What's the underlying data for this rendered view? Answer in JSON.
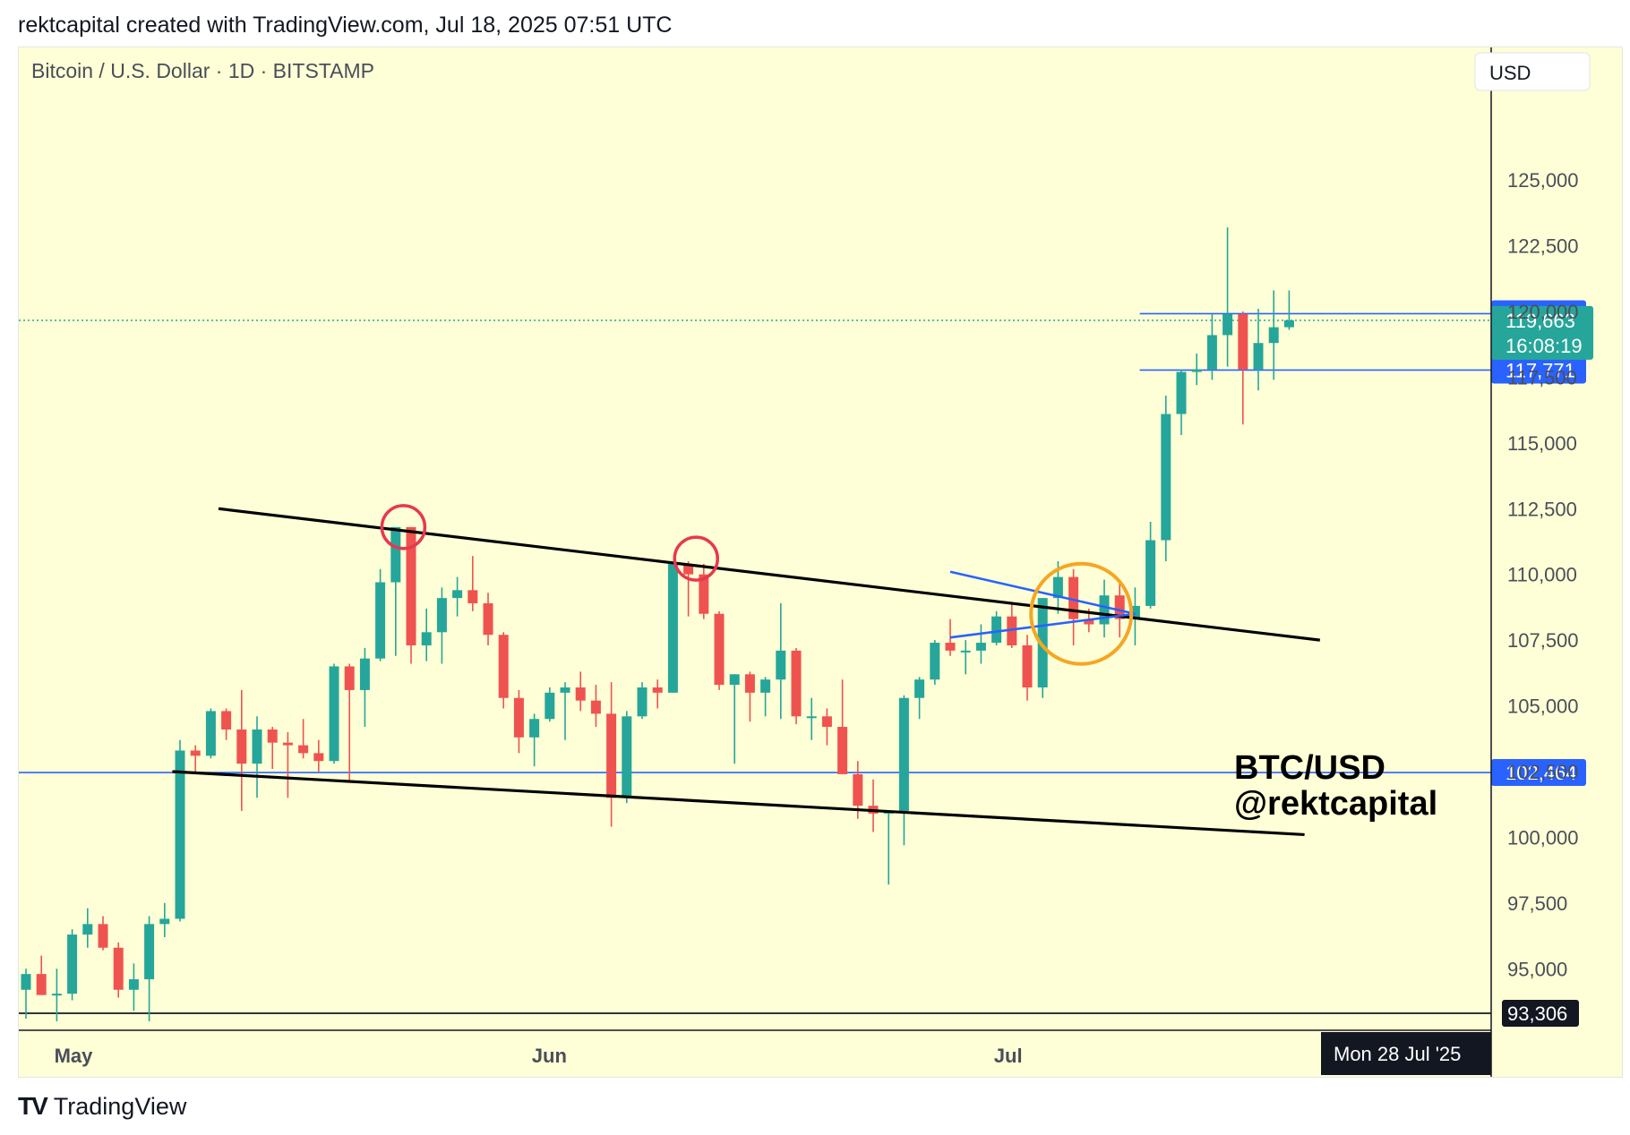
{
  "header": {
    "text": "rektcapital created with TradingView.com, Jul 18, 2025 07:51 UTC"
  },
  "footer": {
    "logo": "TV",
    "brand": "TradingView"
  },
  "chart_data": {
    "type": "candlestick",
    "title": "Bitcoin / U.S. Dollar · 1D · BITSTAMP",
    "currency_button": "USD",
    "watermark": [
      "BTC/USD",
      "@rektcapital"
    ],
    "ylim": [
      93000,
      128000
    ],
    "y_ticks": [
      95000,
      97500,
      100000,
      102500,
      105000,
      107500,
      110000,
      112500,
      115000,
      117500,
      120000,
      122500,
      125000
    ],
    "y_tick_labels": [
      "95,000",
      "97,500",
      "100,000",
      "102,500",
      "105,000",
      "107,500",
      "110,000",
      "112,500",
      "115,000",
      "117,500",
      "120,000",
      "122,500",
      "125,000"
    ],
    "x_labels": [
      {
        "label": "May",
        "index": 3
      },
      {
        "label": "Jun",
        "index": 34
      },
      {
        "label": "Jul",
        "index": 64
      }
    ],
    "cursor_label": "Mon 28 Jul '25",
    "colors": {
      "up": "#26a69a",
      "down": "#ef5350",
      "bg": "#feffd6",
      "hline": "#2962ff",
      "trend": "#000000",
      "triangle": "#2962ff",
      "circle_red": "#e53950",
      "circle_orange": "#f5a623"
    },
    "candles": [
      {
        "date": "2025-04-30",
        "o": 94200,
        "h": 95000,
        "l": 93100,
        "c": 94800
      },
      {
        "date": "2025-05-01",
        "o": 94800,
        "h": 95500,
        "l": 94000,
        "c": 94000
      },
      {
        "date": "2025-05-02",
        "o": 94000,
        "h": 95000,
        "l": 93000,
        "c": 94050
      },
      {
        "date": "2025-05-03",
        "o": 94050,
        "h": 96500,
        "l": 93800,
        "c": 96300
      },
      {
        "date": "2025-05-04",
        "o": 96300,
        "h": 97300,
        "l": 95800,
        "c": 96700
      },
      {
        "date": "2025-05-05",
        "o": 96700,
        "h": 97000,
        "l": 95700,
        "c": 95800
      },
      {
        "date": "2025-05-06",
        "o": 95800,
        "h": 96000,
        "l": 93900,
        "c": 94200
      },
      {
        "date": "2025-05-07",
        "o": 94200,
        "h": 95200,
        "l": 93400,
        "c": 94600
      },
      {
        "date": "2025-05-08",
        "o": 94600,
        "h": 97000,
        "l": 93000,
        "c": 96700
      },
      {
        "date": "2025-05-09",
        "o": 96700,
        "h": 97500,
        "l": 96200,
        "c": 96900
      },
      {
        "date": "2025-05-10",
        "o": 96900,
        "h": 103700,
        "l": 96800,
        "c": 103300
      },
      {
        "date": "2025-05-11",
        "o": 103300,
        "h": 103500,
        "l": 102400,
        "c": 103100
      },
      {
        "date": "2025-05-12",
        "o": 103100,
        "h": 104900,
        "l": 103000,
        "c": 104800
      },
      {
        "date": "2025-05-13",
        "o": 104800,
        "h": 104900,
        "l": 103700,
        "c": 104100
      },
      {
        "date": "2025-05-14",
        "o": 104100,
        "h": 105600,
        "l": 101000,
        "c": 102800
      },
      {
        "date": "2025-05-15",
        "o": 102800,
        "h": 104600,
        "l": 101500,
        "c": 104100
      },
      {
        "date": "2025-05-16",
        "o": 104100,
        "h": 104200,
        "l": 102600,
        "c": 103600
      },
      {
        "date": "2025-05-17",
        "o": 103600,
        "h": 104000,
        "l": 101500,
        "c": 103500
      },
      {
        "date": "2025-05-18",
        "o": 103500,
        "h": 104500,
        "l": 103000,
        "c": 103200
      },
      {
        "date": "2025-05-19",
        "o": 103200,
        "h": 103700,
        "l": 102500,
        "c": 102900
      },
      {
        "date": "2025-05-20",
        "o": 102900,
        "h": 106600,
        "l": 102800,
        "c": 106500
      },
      {
        "date": "2025-05-21",
        "o": 106500,
        "h": 106600,
        "l": 102100,
        "c": 105600
      },
      {
        "date": "2025-05-22",
        "o": 105600,
        "h": 107200,
        "l": 104200,
        "c": 106800
      },
      {
        "date": "2025-05-23",
        "o": 106800,
        "h": 110200,
        "l": 106700,
        "c": 109700
      },
      {
        "date": "2025-05-24",
        "o": 109700,
        "h": 111800,
        "l": 106900,
        "c": 111800
      },
      {
        "date": "2025-05-25",
        "o": 111800,
        "h": 111700,
        "l": 106600,
        "c": 107300
      },
      {
        "date": "2025-05-26",
        "o": 107300,
        "h": 108700,
        "l": 106700,
        "c": 107800
      },
      {
        "date": "2025-05-27",
        "o": 107800,
        "h": 109500,
        "l": 106600,
        "c": 109100
      },
      {
        "date": "2025-05-28",
        "o": 109100,
        "h": 109900,
        "l": 108400,
        "c": 109400
      },
      {
        "date": "2025-05-29",
        "o": 109400,
        "h": 110700,
        "l": 108600,
        "c": 108900
      },
      {
        "date": "2025-05-30",
        "o": 108900,
        "h": 109300,
        "l": 107300,
        "c": 107700
      },
      {
        "date": "2025-05-31",
        "o": 107700,
        "h": 107800,
        "l": 104900,
        "c": 105300
      },
      {
        "date": "2025-06-01",
        "o": 105300,
        "h": 105600,
        "l": 103200,
        "c": 103800
      },
      {
        "date": "2025-06-02",
        "o": 103800,
        "h": 104700,
        "l": 102700,
        "c": 104500
      },
      {
        "date": "2025-06-03",
        "o": 104500,
        "h": 105700,
        "l": 104400,
        "c": 105500
      },
      {
        "date": "2025-06-04",
        "o": 105500,
        "h": 105900,
        "l": 103700,
        "c": 105700
      },
      {
        "date": "2025-06-05",
        "o": 105700,
        "h": 106300,
        "l": 104800,
        "c": 105200
      },
      {
        "date": "2025-06-06",
        "o": 105200,
        "h": 105800,
        "l": 104200,
        "c": 104700
      },
      {
        "date": "2025-06-07",
        "o": 104700,
        "h": 105900,
        "l": 100400,
        "c": 101500
      },
      {
        "date": "2025-06-08",
        "o": 101500,
        "h": 104800,
        "l": 101300,
        "c": 104600
      },
      {
        "date": "2025-06-09",
        "o": 104600,
        "h": 105900,
        "l": 104500,
        "c": 105700
      },
      {
        "date": "2025-06-10",
        "o": 105700,
        "h": 106000,
        "l": 104900,
        "c": 105500
      },
      {
        "date": "2025-06-11",
        "o": 105500,
        "h": 110500,
        "l": 105500,
        "c": 110400
      },
      {
        "date": "2025-06-12",
        "o": 110400,
        "h": 110500,
        "l": 108400,
        "c": 110000
      },
      {
        "date": "2025-06-13",
        "o": 110000,
        "h": 110400,
        "l": 108300,
        "c": 108500
      },
      {
        "date": "2025-06-14",
        "o": 108500,
        "h": 108600,
        "l": 105600,
        "c": 105800
      },
      {
        "date": "2025-06-15",
        "o": 105800,
        "h": 106200,
        "l": 102800,
        "c": 106200
      },
      {
        "date": "2025-06-16",
        "o": 106200,
        "h": 106300,
        "l": 104400,
        "c": 105500
      },
      {
        "date": "2025-06-17",
        "o": 105500,
        "h": 106100,
        "l": 104600,
        "c": 106000
      },
      {
        "date": "2025-06-18",
        "o": 106000,
        "h": 108900,
        "l": 104500,
        "c": 107100
      },
      {
        "date": "2025-06-19",
        "o": 107100,
        "h": 107200,
        "l": 104300,
        "c": 104600
      },
      {
        "date": "2025-06-20",
        "o": 104600,
        "h": 105300,
        "l": 103700,
        "c": 104600
      },
      {
        "date": "2025-06-21",
        "o": 104600,
        "h": 104900,
        "l": 103500,
        "c": 104200
      },
      {
        "date": "2025-06-22",
        "o": 104200,
        "h": 106000,
        "l": 102400,
        "c": 102400
      },
      {
        "date": "2025-06-23",
        "o": 102400,
        "h": 102900,
        "l": 100700,
        "c": 101200
      },
      {
        "date": "2025-06-24",
        "o": 101200,
        "h": 102200,
        "l": 100200,
        "c": 100900
      },
      {
        "date": "2025-06-25",
        "o": 100900,
        "h": 101000,
        "l": 98200,
        "c": 101000
      },
      {
        "date": "2025-06-26",
        "o": 101000,
        "h": 105400,
        "l": 99700,
        "c": 105300
      },
      {
        "date": "2025-06-27",
        "o": 105300,
        "h": 106100,
        "l": 104500,
        "c": 106000
      },
      {
        "date": "2025-06-28",
        "o": 106000,
        "h": 107500,
        "l": 105800,
        "c": 107400
      },
      {
        "date": "2025-06-29",
        "o": 107400,
        "h": 108300,
        "l": 106900,
        "c": 107100
      },
      {
        "date": "2025-06-30",
        "o": 107100,
        "h": 107500,
        "l": 106200,
        "c": 107100
      },
      {
        "date": "2025-07-01",
        "o": 107100,
        "h": 108100,
        "l": 106600,
        "c": 107400
      },
      {
        "date": "2025-07-02",
        "o": 107400,
        "h": 108600,
        "l": 107300,
        "c": 108400
      },
      {
        "date": "2025-07-03",
        "o": 108400,
        "h": 108900,
        "l": 107200,
        "c": 107300
      },
      {
        "date": "2025-07-04",
        "o": 107300,
        "h": 107700,
        "l": 105200,
        "c": 105700
      },
      {
        "date": "2025-07-05",
        "o": 105700,
        "h": 109100,
        "l": 105300,
        "c": 109100
      },
      {
        "date": "2025-07-06",
        "o": 109100,
        "h": 110500,
        "l": 108500,
        "c": 109900
      },
      {
        "date": "2025-07-07",
        "o": 109900,
        "h": 110200,
        "l": 107300,
        "c": 108300
      },
      {
        "date": "2025-07-08",
        "o": 108300,
        "h": 108700,
        "l": 107800,
        "c": 108100
      },
      {
        "date": "2025-07-09",
        "o": 108100,
        "h": 109800,
        "l": 107600,
        "c": 109200
      },
      {
        "date": "2025-07-10",
        "o": 109200,
        "h": 109700,
        "l": 107600,
        "c": 108300
      },
      {
        "date": "2025-07-11",
        "o": 108300,
        "h": 109500,
        "l": 107300,
        "c": 108800
      },
      {
        "date": "2025-07-12",
        "o": 108800,
        "h": 112000,
        "l": 108700,
        "c": 111300
      },
      {
        "date": "2025-07-13",
        "o": 111300,
        "h": 116800,
        "l": 110500,
        "c": 116100
      },
      {
        "date": "2025-07-14",
        "o": 116100,
        "h": 117800,
        "l": 115300,
        "c": 117700
      },
      {
        "date": "2025-07-15",
        "o": 117700,
        "h": 118400,
        "l": 117200,
        "c": 117800
      },
      {
        "date": "2025-07-16",
        "o": 117800,
        "h": 119900,
        "l": 117400,
        "c": 119100
      },
      {
        "date": "2025-07-17",
        "o": 119100,
        "h": 123200,
        "l": 117900,
        "c": 119900
      },
      {
        "date": "2025-07-18",
        "o": 119900,
        "h": 120000,
        "l": 115700,
        "c": 117800
      },
      {
        "date": "2025-07-19",
        "o": 117800,
        "h": 120100,
        "l": 117000,
        "c": 118800
      },
      {
        "date": "2025-07-20",
        "o": 118800,
        "h": 120800,
        "l": 117400,
        "c": 119400
      },
      {
        "date": "2025-07-21",
        "o": 119400,
        "h": 120800,
        "l": 119300,
        "c": 119663
      }
    ],
    "horizontal_lines": [
      {
        "price": 119916,
        "label": "119,916",
        "start_index": 73
      },
      {
        "price": 117771,
        "label": "117,771",
        "start_index": 73
      },
      {
        "price": 102464,
        "label": "102,464",
        "start_index": -1
      }
    ],
    "bottom_line": {
      "price": 93306,
      "label": "93,306"
    },
    "last_price": {
      "price": 119663,
      "label": "119,663",
      "countdown": "16:08:19"
    },
    "trendlines": [
      {
        "points": [
          [
            12.5,
            112500
          ],
          [
            84,
            107500
          ]
        ]
      },
      {
        "points": [
          [
            9.5,
            102500
          ],
          [
            83,
            100100
          ]
        ]
      }
    ],
    "triangle": {
      "apex": [
        72,
        108500
      ],
      "upper_start": [
        60,
        110100
      ],
      "lower_start": [
        60,
        107600
      ]
    },
    "circle_markers": [
      {
        "kind": "red",
        "index": 24.5,
        "price": 111800
      },
      {
        "kind": "red",
        "index": 43.5,
        "price": 110600
      },
      {
        "kind": "orange",
        "index": 68.5,
        "price": 108500
      }
    ]
  }
}
